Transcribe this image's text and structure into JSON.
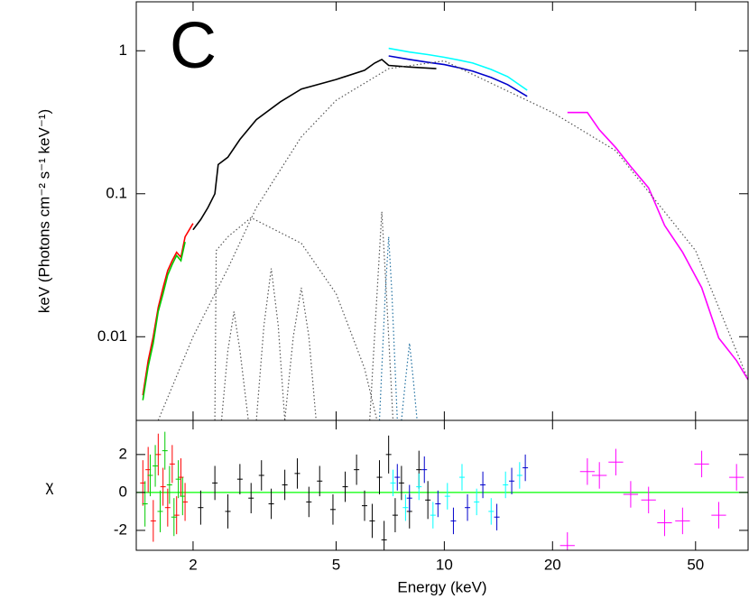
{
  "chart_data": [
    {
      "type": "line",
      "annotation": "C",
      "ylabel": "keV (Photons cm⁻² s⁻¹ keV⁻¹)",
      "xlog": true,
      "ylog": true,
      "xlim": [
        1.39,
        70
      ],
      "ylim": [
        0.0026,
        2.2
      ],
      "yticks": [
        1,
        0.1,
        0.01
      ],
      "series": [
        {
          "color": "#000000",
          "x": [
            2.0,
            2.1,
            2.2,
            2.3,
            2.35,
            2.5,
            2.7,
            3,
            3.5,
            4,
            5,
            6,
            6.4,
            6.7,
            7,
            8,
            9.5
          ],
          "values": [
            0.056,
            0.066,
            0.08,
            0.1,
            0.16,
            0.18,
            0.24,
            0.33,
            0.44,
            0.54,
            0.63,
            0.73,
            0.82,
            0.87,
            0.79,
            0.77,
            0.75
          ]
        },
        {
          "color": "#ff0000",
          "x": [
            1.45,
            1.5,
            1.55,
            1.6,
            1.65,
            1.7,
            1.75,
            1.8,
            1.85,
            1.9,
            2.0
          ],
          "values": [
            0.0039,
            0.0068,
            0.01,
            0.016,
            0.022,
            0.029,
            0.034,
            0.039,
            0.036,
            0.05,
            0.062
          ]
        },
        {
          "color": "#00cc00",
          "x": [
            1.45,
            1.5,
            1.55,
            1.6,
            1.65,
            1.7,
            1.75,
            1.8,
            1.85,
            1.9
          ],
          "values": [
            0.0036,
            0.0062,
            0.009,
            0.015,
            0.02,
            0.027,
            0.032,
            0.037,
            0.034,
            0.046
          ]
        },
        {
          "color": "#00ffff",
          "x": [
            7,
            8,
            9,
            10,
            11,
            12,
            13.5,
            15,
            17
          ],
          "values": [
            1.04,
            0.98,
            0.94,
            0.9,
            0.86,
            0.82,
            0.74,
            0.66,
            0.53
          ]
        },
        {
          "color": "#0000cc",
          "x": [
            7,
            8,
            9,
            10,
            11,
            12,
            13.5,
            15,
            17
          ],
          "values": [
            0.92,
            0.87,
            0.83,
            0.8,
            0.76,
            0.72,
            0.65,
            0.58,
            0.48
          ]
        },
        {
          "color": "#ff00ff",
          "x": [
            22,
            25,
            27,
            30,
            33,
            37,
            41,
            46,
            52,
            58,
            65,
            70
          ],
          "values": [
            0.37,
            0.37,
            0.28,
            0.21,
            0.155,
            0.11,
            0.06,
            0.039,
            0.022,
            0.0098,
            0.0068,
            0.005
          ]
        },
        {
          "color": "#555555",
          "dotted": true,
          "x": [
            1.6,
            2,
            2.5,
            3,
            4,
            5,
            7,
            10,
            20,
            30,
            50,
            70
          ],
          "values": [
            0.0026,
            0.01,
            0.03,
            0.08,
            0.25,
            0.45,
            0.75,
            0.85,
            0.37,
            0.2,
            0.04,
            0.005
          ]
        },
        {
          "color": "#555555",
          "dotted": true,
          "x": [
            2.3,
            2.32,
            2.5,
            2.9,
            4,
            5,
            6,
            6.5
          ],
          "values": [
            0.0026,
            0.04,
            0.05,
            0.068,
            0.045,
            0.02,
            0.006,
            0.0026
          ]
        },
        {
          "color": "#555555",
          "dotted": true,
          "x": [
            2.4,
            2.5,
            2.6,
            2.7,
            2.85
          ],
          "values": [
            0.0026,
            0.008,
            0.015,
            0.008,
            0.0026
          ]
        },
        {
          "color": "#555555",
          "dotted": true,
          "x": [
            3.0,
            3.15,
            3.3,
            3.45,
            3.6
          ],
          "values": [
            0.0026,
            0.012,
            0.03,
            0.012,
            0.0026
          ]
        },
        {
          "color": "#555555",
          "dotted": true,
          "x": [
            3.6,
            3.8,
            4.0,
            4.2,
            4.4
          ],
          "values": [
            0.0026,
            0.01,
            0.022,
            0.01,
            0.0026
          ]
        },
        {
          "color": "#555555",
          "dotted": true,
          "x": [
            6.2,
            6.5,
            6.7,
            6.9,
            7.2
          ],
          "values": [
            0.0026,
            0.02,
            0.075,
            0.02,
            0.0026
          ]
        },
        {
          "color": "#1f6f9f",
          "dotted": true,
          "x": [
            6.6,
            6.85,
            7.0,
            7.15,
            7.4
          ],
          "values": [
            0.0026,
            0.02,
            0.05,
            0.02,
            0.0026
          ]
        },
        {
          "color": "#1f6f9f",
          "dotted": true,
          "x": [
            7.6,
            7.8,
            8.0,
            8.2,
            8.4
          ],
          "values": [
            0.0026,
            0.005,
            0.009,
            0.005,
            0.0026
          ]
        }
      ]
    },
    {
      "type": "errorbar",
      "xlabel": "Energy (keV)",
      "ylabel": "χ",
      "xlog": true,
      "xlim": [
        1.39,
        70
      ],
      "ylim": [
        -3.05,
        3.8
      ],
      "xticks": [
        2,
        5,
        10,
        20,
        50
      ],
      "yticks": [
        2,
        0,
        -2
      ],
      "reference_line": {
        "value": 0,
        "color": "#00ff00"
      },
      "series": [
        {
          "color": "#ff0000",
          "x": [
            1.45,
            1.5,
            1.55,
            1.6,
            1.65,
            1.7,
            1.75,
            1.8,
            1.85,
            1.9
          ],
          "values": [
            0.5,
            1.2,
            -1.5,
            2.0,
            0.3,
            -0.8,
            1.5,
            -1.2,
            0.8,
            -0.5
          ],
          "err": [
            1.2,
            1.2,
            1.1,
            1.1,
            1.0,
            1.0,
            1.0,
            1.0,
            1.0,
            1.0
          ]
        },
        {
          "color": "#00cc00",
          "x": [
            1.47,
            1.52,
            1.57,
            1.62,
            1.67,
            1.72,
            1.77,
            1.82,
            1.87
          ],
          "values": [
            -0.6,
            0.9,
            1.4,
            -1.0,
            2.2,
            0.4,
            -1.3,
            0.7,
            -0.2
          ],
          "err": [
            1.2,
            1.1,
            1.1,
            1.1,
            1.0,
            1.0,
            1.0,
            1.0,
            1.0
          ]
        },
        {
          "color": "#000000",
          "x": [
            2.1,
            2.3,
            2.5,
            2.7,
            2.9,
            3.1,
            3.3,
            3.6,
            3.9,
            4.2,
            4.5,
            4.9,
            5.3,
            5.7,
            6.0,
            6.3,
            6.6,
            6.8,
            7.0,
            7.3,
            7.6,
            8.0,
            8.5,
            9.0
          ],
          "values": [
            -0.8,
            0.5,
            -1.0,
            0.7,
            -0.3,
            0.9,
            -0.6,
            0.4,
            1.0,
            -0.5,
            0.6,
            -0.9,
            0.3,
            1.2,
            -0.7,
            -1.5,
            0.8,
            -2.5,
            2.0,
            -1.2,
            0.5,
            -1.0,
            1.2,
            -0.4
          ],
          "err": [
            0.9,
            0.9,
            0.9,
            0.8,
            0.8,
            0.8,
            0.8,
            0.8,
            0.8,
            0.8,
            0.8,
            0.8,
            0.8,
            0.8,
            0.8,
            0.9,
            0.9,
            1.0,
            1.0,
            0.9,
            0.9,
            0.9,
            1.0,
            1.0
          ]
        },
        {
          "color": "#00ffff",
          "x": [
            7.2,
            7.8,
            8.5,
            9.3,
            10.2,
            11.2,
            12.3,
            13.5,
            14.8,
            16.2
          ],
          "values": [
            0.5,
            -0.8,
            0.3,
            -1.2,
            -0.2,
            0.8,
            -0.5,
            -1.0,
            0.4,
            0.9
          ],
          "err": [
            0.7,
            0.7,
            0.7,
            0.7,
            0.7,
            0.7,
            0.7,
            0.7,
            0.7,
            0.7
          ]
        },
        {
          "color": "#0000cc",
          "x": [
            7.4,
            8.0,
            8.8,
            9.6,
            10.6,
            11.6,
            12.8,
            14.0,
            15.4,
            16.8
          ],
          "values": [
            0.8,
            -0.3,
            1.2,
            -0.6,
            -1.5,
            -0.8,
            0.4,
            -1.3,
            0.6,
            1.3
          ],
          "err": [
            0.7,
            0.7,
            0.7,
            0.7,
            0.7,
            0.7,
            0.7,
            0.7,
            0.7,
            0.7
          ]
        },
        {
          "color": "#ff00ff",
          "x": [
            22,
            25,
            27,
            30,
            33,
            37,
            41,
            46,
            52,
            58,
            65
          ],
          "values": [
            -2.8,
            1.1,
            0.9,
            1.6,
            -0.1,
            -0.4,
            -1.6,
            -1.5,
            1.5,
            -1.2,
            0.8
          ],
          "err": [
            0.7,
            0.7,
            0.7,
            0.7,
            0.7,
            0.7,
            0.7,
            0.7,
            0.7,
            0.7,
            0.7
          ]
        }
      ]
    }
  ]
}
